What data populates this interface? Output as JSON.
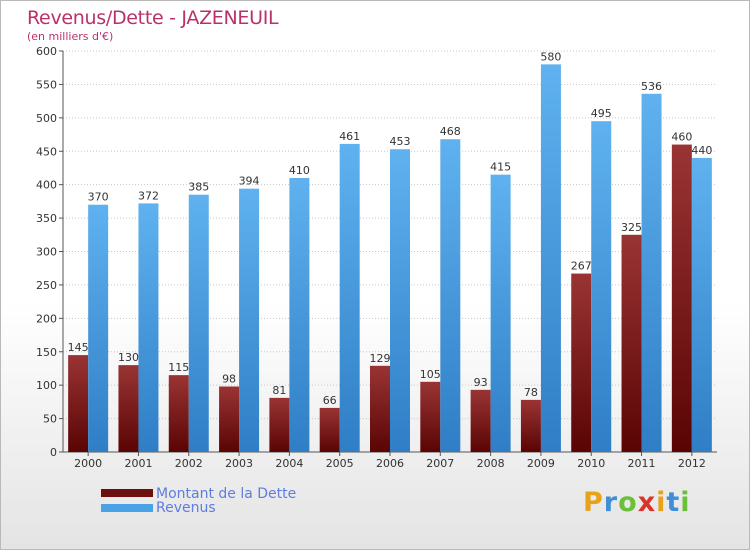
{
  "header": {
    "title": "Revenus/Dette - JAZENEUIL",
    "subtitle": "(en milliers d'€)"
  },
  "legend": {
    "items": [
      {
        "label": "Montant de la Dette",
        "color": "#6b0f0f"
      },
      {
        "label": "Revenus",
        "color": "#4aa2e6"
      }
    ]
  },
  "brand": {
    "letters": [
      "P",
      "r",
      "o",
      "x",
      "i",
      "t",
      "i"
    ]
  },
  "chart_data": {
    "type": "bar",
    "categories": [
      "2000",
      "2001",
      "2002",
      "2003",
      "2004",
      "2005",
      "2006",
      "2007",
      "2008",
      "2009",
      "2010",
      "2011",
      "2012"
    ],
    "series": [
      {
        "name": "Montant de la Dette",
        "values": [
          145,
          130,
          115,
          98,
          81,
          66,
          129,
          105,
          93,
          78,
          267,
          325,
          460
        ],
        "color": "#6b0f0f"
      },
      {
        "name": "Revenus",
        "values": [
          370,
          372,
          385,
          394,
          410,
          461,
          453,
          468,
          415,
          580,
          495,
          536,
          440
        ],
        "color": "#4aa2e6"
      }
    ],
    "title": "Revenus/Dette - JAZENEUIL",
    "subtitle": "(en milliers d'€)",
    "ylim": [
      0,
      600
    ],
    "yticks": [
      0,
      50,
      100,
      150,
      200,
      250,
      300,
      350,
      400,
      450,
      500,
      550,
      600
    ],
    "grid": true,
    "legend_position": "bottom-left"
  }
}
